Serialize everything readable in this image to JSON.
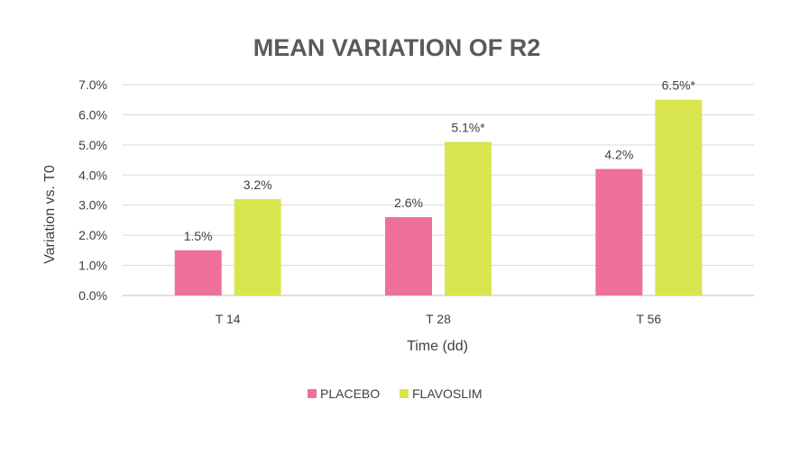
{
  "chart_data": {
    "type": "bar",
    "title": "MEAN VARIATION OF R2",
    "xlabel": "Time (dd)",
    "ylabel": "Variation vs. T0",
    "categories": [
      "T 14",
      "T 28",
      "T 56"
    ],
    "ylim": [
      0,
      7.0
    ],
    "yticks": [
      "0.0%",
      "1.0%",
      "2.0%",
      "3.0%",
      "4.0%",
      "5.0%",
      "6.0%",
      "7.0%"
    ],
    "grid": true,
    "legend_position": "bottom",
    "series": [
      {
        "name": "PLACEBO",
        "color": "#ee7199",
        "values": [
          1.5,
          2.6,
          4.2
        ],
        "labels": [
          "1.5%",
          "2.6%",
          "4.2%"
        ]
      },
      {
        "name": "FLAVOSLIM",
        "color": "#d9e650",
        "values": [
          3.2,
          5.1,
          6.5
        ],
        "labels": [
          "3.2%",
          "5.1%*",
          "6.5%*"
        ]
      }
    ]
  },
  "colors": {
    "title": "#5a5a5a",
    "text": "#404040",
    "grid": "#d9d9d9",
    "axis": "#bfbfbf"
  }
}
